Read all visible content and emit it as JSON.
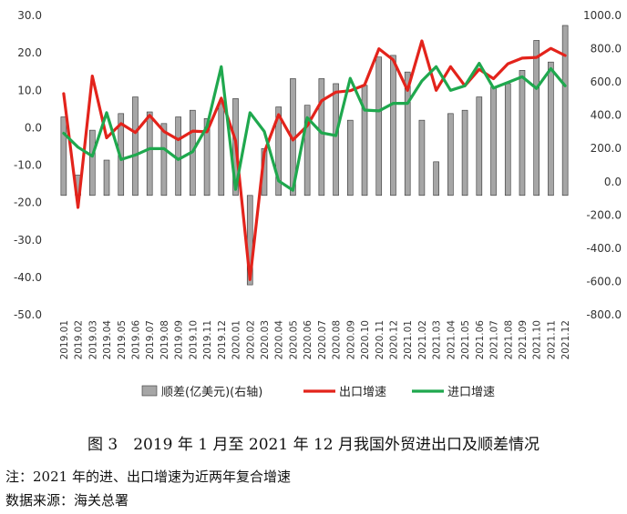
{
  "chart_data": {
    "type": "bar+line",
    "categories": [
      "2019.01",
      "2019.02",
      "2019.03",
      "2019.04",
      "2019.05",
      "2019.06",
      "2019.07",
      "2019.08",
      "2019.09",
      "2019.10",
      "2019.11",
      "2019.12",
      "2020.01",
      "2020.02",
      "2020.03",
      "2020.04",
      "2020.05",
      "2020.06",
      "2020.07",
      "2020.08",
      "2020.09",
      "2020.10",
      "2020.11",
      "2020.12",
      "2021.01",
      "2021.02",
      "2021.03",
      "2021.04",
      "2021.05",
      "2021.06",
      "2021.07",
      "2021.08",
      "2021.09",
      "2021.10",
      "2021.11",
      "2021.12"
    ],
    "left_axis": {
      "min": -50,
      "max": 30,
      "step": 10,
      "ticks": [
        "30.0",
        "20.0",
        "10.0",
        "0.0",
        "-10.0",
        "-20.0",
        "-30.0",
        "-40.0",
        "-50.0"
      ]
    },
    "right_axis": {
      "min": -800,
      "max": 1000,
      "step": 200,
      "ticks": [
        "1000.0",
        "800.0",
        "600.0",
        "400.0",
        "200.0",
        "0.0",
        "-200.0",
        "-400.0",
        "-600.0",
        "-800.0"
      ]
    },
    "series": [
      {
        "name": "顺差(亿美元)(右轴)",
        "type": "bar",
        "axis": "right",
        "color": "#a6a6a6",
        "values": [
          390,
          40,
          310,
          130,
          410,
          510,
          420,
          350,
          390,
          430,
          380,
          470,
          500,
          -620,
          200,
          450,
          620,
          460,
          620,
          590,
          370,
          580,
          750,
          760,
          660,
          370,
          120,
          410,
          430,
          510,
          570,
          590,
          670,
          850,
          720,
          940
        ]
      },
      {
        "name": "出口增速",
        "type": "line",
        "axis": "left",
        "color": "#e3231b",
        "values": [
          9.1,
          -21.3,
          13.8,
          -2.7,
          1.1,
          -1.3,
          3.3,
          -1.0,
          -3.2,
          -0.9,
          -1.1,
          7.9,
          -3.5,
          -40.6,
          -6.6,
          3.5,
          -3.3,
          0.5,
          7.2,
          9.5,
          9.9,
          11.4,
          21.1,
          18.1,
          10.0,
          23.2,
          10.0,
          16.3,
          11.2,
          15.6,
          13.1,
          17.1,
          18.6,
          18.8,
          21.2,
          19.3
        ]
      },
      {
        "name": "进口增速",
        "type": "line",
        "axis": "left",
        "color": "#1fa84e",
        "values": [
          -1.5,
          -5.2,
          -7.6,
          4.0,
          -8.5,
          -7.3,
          -5.6,
          -5.6,
          -8.5,
          -6.4,
          0.3,
          16.3,
          -16.5,
          4.0,
          -1.0,
          -14.2,
          -16.7,
          2.7,
          -1.4,
          -2.1,
          13.2,
          4.7,
          4.5,
          6.5,
          6.5,
          12.5,
          16.3,
          10.0,
          11.2,
          17.2,
          10.6,
          12.1,
          13.6,
          10.5,
          15.8,
          11.2
        ]
      }
    ]
  },
  "caption": "图 3　2019 年 1 月至 2021 年 12 月我国外贸进出口及顺差情况",
  "notes": {
    "note1": "注：2021 年的进、出口增速为近两年复合增速",
    "note2": "数据来源：海关总署"
  }
}
